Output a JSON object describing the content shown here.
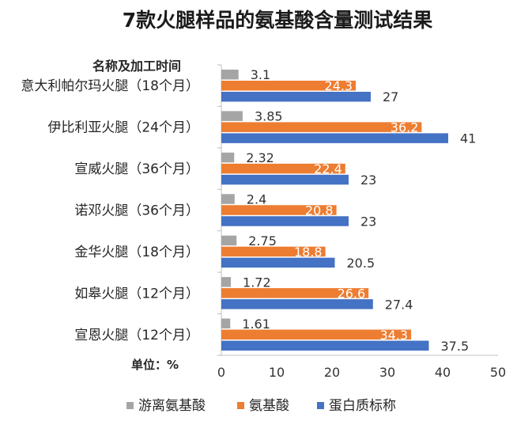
{
  "chart_data": {
    "type": "bar",
    "orientation": "horizontal",
    "title": "7款火腿样品的氨基酸含量测试结果",
    "category_axis_header": "名称及加工时间",
    "unit_label": "单位：%",
    "categories": [
      "意大利帕尔玛火腿（18个月）",
      "伊比利亚火腿（24个月）",
      "宣威火腿（36个月）",
      "诺邓火腿（36个月）",
      "金华火腿（18个月）",
      "如皋火腿（12个月）",
      "宣恩火腿（12个月）"
    ],
    "series": [
      {
        "name": "游离氨基酸",
        "color": "#a5a5a5",
        "label_color": "#333333",
        "values": [
          3.1,
          3.85,
          2.32,
          2.4,
          2.75,
          1.72,
          1.61
        ]
      },
      {
        "name": "氨基酸",
        "color": "#ed7d31",
        "label_color": "#ffffff",
        "values": [
          24.3,
          36.2,
          22.4,
          20.8,
          18.8,
          26.6,
          34.3
        ]
      },
      {
        "name": "蛋白质标称",
        "color": "#4472c4",
        "label_color": "#333333",
        "values": [
          27,
          41,
          23,
          23,
          20.5,
          27.4,
          37.5
        ]
      }
    ],
    "xlim": [
      0,
      50
    ],
    "xticks": [
      "0",
      "10",
      "20",
      "30",
      "40",
      "50"
    ],
    "grid": false,
    "legend": "bottom"
  }
}
